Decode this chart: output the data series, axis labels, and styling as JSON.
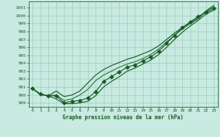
{
  "title": "Graphe pression niveau de la mer (hPa)",
  "bg_color": "#c8eae0",
  "grid_color": "#99ccbb",
  "line_color_dark": "#1a5c28",
  "line_color_light": "#2d7a40",
  "xlim": [
    -0.5,
    23.5
  ],
  "ylim": [
    988.5,
    1001.8
  ],
  "yticks": [
    989,
    990,
    991,
    992,
    993,
    994,
    995,
    996,
    997,
    998,
    999,
    1000,
    1001
  ],
  "xticks": [
    0,
    1,
    2,
    3,
    4,
    5,
    6,
    7,
    8,
    9,
    10,
    11,
    12,
    13,
    14,
    15,
    16,
    17,
    18,
    19,
    20,
    21,
    22,
    23
  ],
  "series1": [
    990.8,
    990.1,
    989.9,
    989.9,
    989.0,
    989.2,
    989.3,
    989.6,
    990.4,
    991.7,
    992.3,
    992.9,
    993.5,
    993.8,
    994.3,
    994.8,
    995.5,
    996.5,
    997.5,
    998.5,
    999.2,
    999.9,
    1000.4,
    1000.9
  ],
  "series2": [
    990.8,
    990.1,
    989.9,
    990.5,
    989.8,
    990.0,
    990.5,
    991.5,
    992.5,
    993.2,
    993.7,
    994.1,
    994.5,
    994.8,
    995.2,
    995.6,
    996.2,
    997.0,
    997.8,
    998.5,
    999.1,
    999.7,
    1000.6,
    1001.3
  ],
  "series3": [
    990.8,
    990.1,
    989.9,
    989.5,
    988.9,
    988.9,
    989.0,
    989.2,
    989.9,
    991.0,
    991.7,
    992.3,
    993.0,
    993.4,
    993.9,
    994.4,
    995.1,
    996.0,
    997.0,
    997.9,
    998.7,
    999.4,
    1000.2,
    1000.7
  ],
  "series4": [
    990.8,
    990.0,
    989.9,
    990.0,
    989.3,
    989.5,
    990.0,
    990.7,
    991.8,
    992.5,
    993.0,
    993.5,
    993.9,
    994.2,
    994.6,
    995.1,
    995.8,
    996.7,
    997.5,
    998.3,
    999.0,
    999.6,
    1000.5,
    1001.1
  ]
}
